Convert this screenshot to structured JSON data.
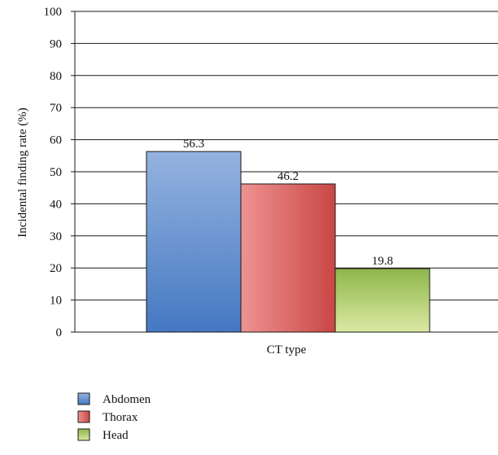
{
  "chart_data": {
    "type": "bar",
    "title": "",
    "xlabel": "CT type",
    "ylabel": "Incidental finding rate (%)",
    "ylim": [
      0,
      100
    ],
    "yticks": [
      0,
      10,
      20,
      30,
      40,
      50,
      60,
      70,
      80,
      90,
      100
    ],
    "grid": true,
    "legend_position": "bottom-left",
    "categories": [
      "CT type"
    ],
    "series": [
      {
        "name": "Abdomen",
        "values": [
          56.3
        ],
        "data_label": "56.3",
        "color_top": "#95b3df",
        "color_bottom": "#4478c2"
      },
      {
        "name": "Thorax",
        "values": [
          46.2
        ],
        "data_label": "46.2",
        "color_top": "#ee9391",
        "color_bottom": "#c94745",
        "gradient": "horizontal"
      },
      {
        "name": "Head",
        "values": [
          19.8
        ],
        "data_label": "19.8",
        "color_top": "#8db64a",
        "color_bottom": "#dbe9a4"
      }
    ]
  }
}
